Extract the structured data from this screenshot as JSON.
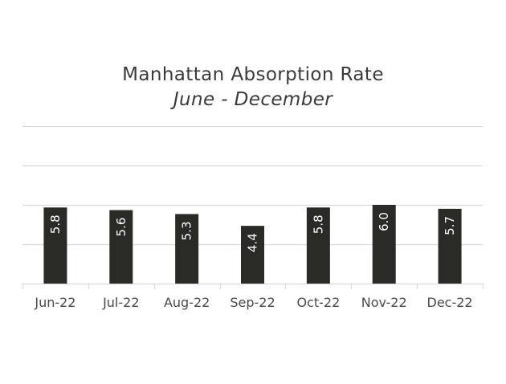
{
  "chart_data": {
    "type": "bar",
    "title": "Manhattan Absorption Rate",
    "subtitle": "June - December",
    "categories": [
      "Jun-22",
      "Jul-22",
      "Aug-22",
      "Sep-22",
      "Oct-22",
      "Nov-22",
      "Dec-22"
    ],
    "values": [
      5.8,
      5.6,
      5.3,
      4.4,
      5.8,
      6.0,
      5.7
    ],
    "value_labels": [
      "5.8",
      "5.6",
      "5.3",
      "4.4",
      "5.8",
      "6.0",
      "5.7"
    ],
    "xlabel": "",
    "ylabel": "",
    "ylim": [
      0,
      12
    ],
    "gridlines": [
      0,
      3,
      6,
      9,
      12
    ],
    "grid": true,
    "legend": "none",
    "colors": {
      "bar": "#2a2a26",
      "bar_label": "#ffffff",
      "grid": "#d9d9d9",
      "axis_text": "#4a4a4a"
    }
  }
}
